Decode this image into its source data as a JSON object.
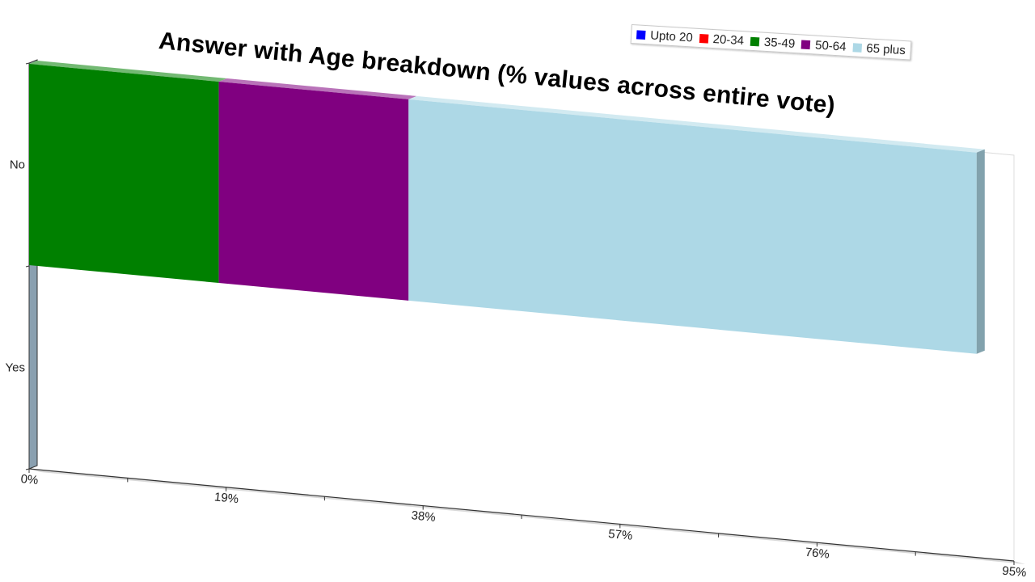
{
  "chart_data": {
    "type": "bar",
    "orientation": "horizontal",
    "stacked": true,
    "title": "Answer with Age breakdown (% values across entire vote)",
    "categories": [
      "Yes",
      "No"
    ],
    "series": [
      {
        "name": "Upto 20",
        "color": "#0000ff",
        "values": [
          0,
          0
        ]
      },
      {
        "name": "20-34",
        "color": "#ff0000",
        "values": [
          0,
          0
        ]
      },
      {
        "name": "35-49",
        "color": "#008000",
        "values": [
          0,
          18.3
        ]
      },
      {
        "name": "50-64",
        "color": "#800080",
        "values": [
          0,
          18.3
        ]
      },
      {
        "name": "65 plus",
        "color": "#add8e6",
        "values": [
          0,
          54.8
        ]
      }
    ],
    "xaxis_ticks": [
      "0%",
      "19%",
      "38%",
      "57%",
      "76%",
      "95%"
    ],
    "xlim": [
      0,
      95
    ],
    "legend_position": "top-right",
    "grid": false
  }
}
